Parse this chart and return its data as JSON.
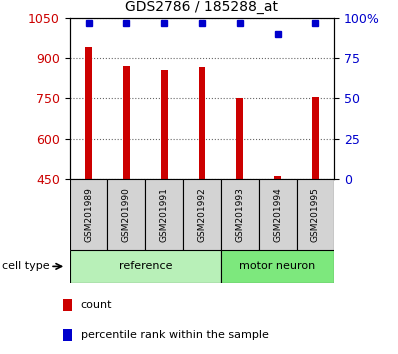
{
  "title": "GDS2786 / 185288_at",
  "samples": [
    "GSM201989",
    "GSM201990",
    "GSM201991",
    "GSM201992",
    "GSM201993",
    "GSM201994",
    "GSM201995"
  ],
  "counts": [
    940,
    870,
    855,
    865,
    750,
    460,
    755
  ],
  "percentiles": [
    97,
    97,
    97,
    97,
    97,
    90,
    97
  ],
  "ylim_left": [
    450,
    1050
  ],
  "ylim_right": [
    0,
    100
  ],
  "yticks_left": [
    450,
    600,
    750,
    900,
    1050
  ],
  "yticks_right": [
    0,
    25,
    50,
    75,
    100
  ],
  "ytick_labels_right": [
    "0",
    "25",
    "50",
    "75",
    "100%"
  ],
  "bar_color": "#cc0000",
  "dot_color": "#0000cc",
  "grid_color": "#000000",
  "group_labels": [
    "reference",
    "motor neuron"
  ],
  "group_ranges": [
    [
      0,
      4
    ],
    [
      4,
      7
    ]
  ],
  "xlabel_color": "#cc0000",
  "right_label_color": "#0000cc",
  "cell_type_label": "cell type",
  "legend_count_label": "count",
  "legend_percentile_label": "percentile rank within the sample",
  "tick_area_color": "#d3d3d3",
  "group_color_ref": "#b8f0b8",
  "group_color_mn": "#7de87d"
}
